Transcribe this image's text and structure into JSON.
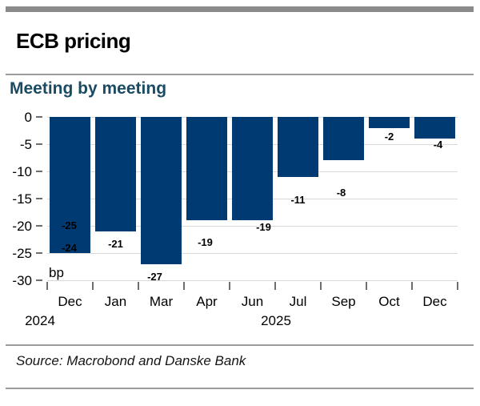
{
  "header": {
    "title": "ECB pricing"
  },
  "footer": {
    "source": "Source: Macrobond and Danske Bank"
  },
  "chart_data": {
    "type": "bar",
    "title": "Meeting by meeting",
    "unit_label": "bp",
    "categories": [
      "Dec",
      "Jan",
      "Mar",
      "Apr",
      "Jun",
      "Jul",
      "Sep",
      "Oct",
      "Dec"
    ],
    "values": [
      -25,
      -21,
      -27,
      -19,
      -19,
      -11,
      -8,
      -2,
      -4
    ],
    "bar_labels": [
      [
        "-25",
        "-24"
      ],
      [
        "-21"
      ],
      [
        "-27"
      ],
      [
        "-19"
      ],
      [
        "-19"
      ],
      [
        "-11"
      ],
      [
        "-8"
      ],
      [
        "-2"
      ],
      [
        "-4"
      ]
    ],
    "year_labels": [
      "2024",
      "2025"
    ],
    "yticks": [
      0,
      -5,
      -10,
      -15,
      -20,
      -25,
      -30
    ],
    "ylim": [
      -30,
      0
    ],
    "grid": true,
    "legend": "none",
    "bar_color": "#003A73",
    "subtitle_color": "#1A4B63"
  }
}
